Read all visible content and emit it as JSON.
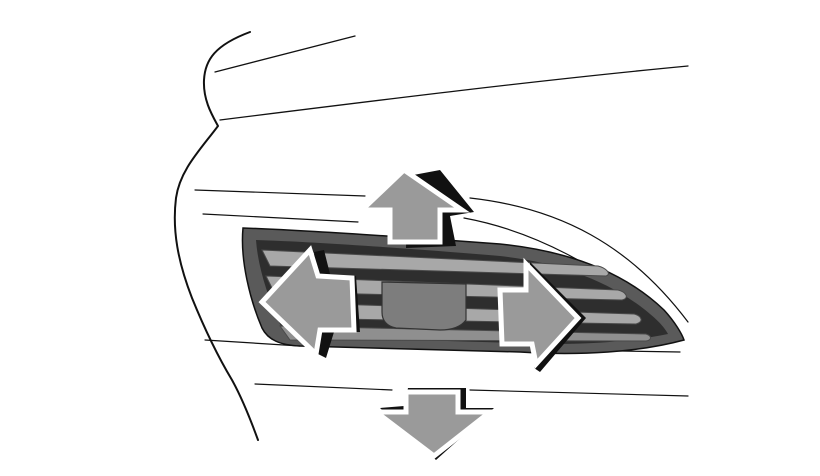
{
  "illustration": {
    "subject": "air-vent-adjustment",
    "colors": {
      "outline": "#111111",
      "arrow_fill": "#9a9a9a",
      "arrow_shadow": "#111111",
      "vent_frame": "#5a5a5a",
      "vent_slot": "#2e2e2e",
      "louver": "#a8a8a8",
      "knob": "#7d7d7d",
      "background": "#ffffff"
    },
    "arrows": [
      {
        "direction": "up",
        "icon": "arrow-up-icon"
      },
      {
        "direction": "left",
        "icon": "arrow-left-icon"
      },
      {
        "direction": "right",
        "icon": "arrow-right-icon"
      },
      {
        "direction": "down",
        "icon": "arrow-down-icon"
      }
    ]
  }
}
